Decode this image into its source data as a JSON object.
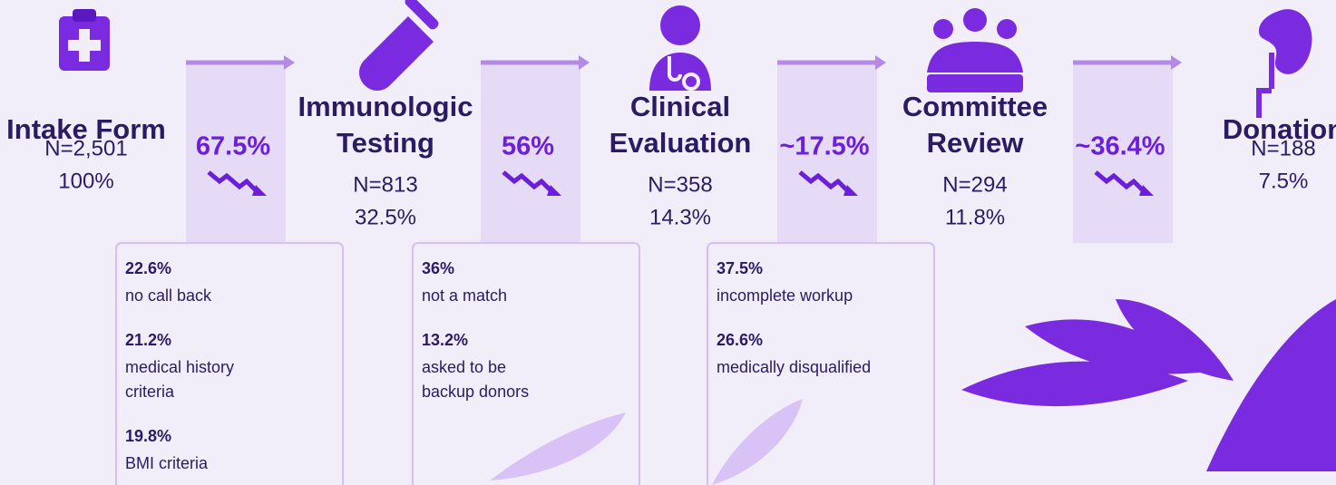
{
  "stages": [
    {
      "title": [
        "Intake Form"
      ],
      "n": "N=2,501",
      "pct": "100%"
    },
    {
      "title": [
        "Immunologic",
        "Testing"
      ],
      "n": "N=813",
      "pct": "32.5%"
    },
    {
      "title": [
        "Clinical",
        "Evaluation"
      ],
      "n": "N=358",
      "pct": "14.3%"
    },
    {
      "title": [
        "Committee",
        "Review"
      ],
      "n": "N=294",
      "pct": "11.8%"
    },
    {
      "title": [
        "Donation"
      ],
      "n": "N=188",
      "pct": "7.5%"
    }
  ],
  "drops": [
    "67.5%",
    "56%",
    "~17.5%",
    "~36.4%"
  ],
  "reasons": [
    [
      {
        "pct": "22.6%",
        "text": [
          "no call back"
        ]
      },
      {
        "pct": "21.2%",
        "text": [
          "medical history",
          "criteria"
        ]
      },
      {
        "pct": "19.8%",
        "text": [
          "BMI criteria"
        ]
      }
    ],
    [
      {
        "pct": "36%",
        "text": [
          "not a match"
        ]
      },
      {
        "pct": "13.2%",
        "text": [
          "asked to be",
          "backup donors"
        ]
      }
    ],
    [
      {
        "pct": "37.5%",
        "text": [
          "incomplete workup"
        ]
      },
      {
        "pct": "26.6%",
        "text": [
          "medically disqualified"
        ]
      }
    ]
  ]
}
